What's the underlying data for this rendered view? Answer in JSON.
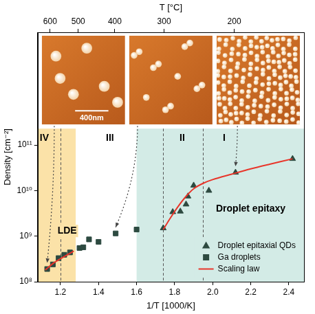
{
  "chart_data": {
    "type": "scatter",
    "log": "y",
    "grid": false,
    "legend": "lower right",
    "x_label": "1/T [1000/K]",
    "x2_label": "T [°C]",
    "y_label": "Density [cm⁻²]",
    "xlim": [
      1.08,
      2.48
    ],
    "xticks": [
      1.2,
      1.4,
      1.6,
      1.8,
      {
        "value": 2,
        "label": "2.0"
      },
      2.2,
      2.4
    ],
    "x2ticks": [
      600,
      500,
      400,
      300,
      200
    ],
    "ylim": [
      100000000,
      30000000000000
    ],
    "yticks": [
      {
        "value": 100000000,
        "label": "10⁸"
      },
      {
        "value": 1000000000,
        "label": "10⁹"
      },
      {
        "value": 10000000000,
        "label": "10¹⁰"
      },
      {
        "value": 100000000000,
        "label": "10¹¹"
      }
    ],
    "series": [
      {
        "name": "Droplet epitaxial QDs",
        "type": "scatter",
        "marker": "triangle",
        "color": "#2d4a40",
        "x": [
          1.74,
          1.79,
          1.83,
          1.86,
          1.87,
          1.9,
          1.98,
          2.12,
          2.42
        ],
        "values": [
          1500000000,
          3400000000,
          3500000000,
          5000000000,
          7500000000,
          13000000000,
          10000000000,
          25000000000,
          50000000000
        ]
      },
      {
        "name": "Ga droplets",
        "type": "scatter",
        "marker": "square",
        "color": "#2d4a40",
        "x": [
          1.13,
          1.16,
          1.19,
          1.22,
          1.25,
          1.3,
          1.32,
          1.35,
          1.4,
          1.49,
          1.6
        ],
        "values": [
          190000000,
          240000000,
          330000000,
          390000000,
          440000000,
          550000000,
          570000000,
          850000000,
          750000000,
          1150000000,
          1400000000
        ]
      },
      {
        "name": "Scaling law",
        "type": "line",
        "line_style": "solid",
        "color": "#e8352a",
        "x": [
          1.12,
          1.16,
          1.2,
          1.24,
          1.27,
          null,
          1.74,
          1.78,
          1.82,
          1.86,
          1.9,
          1.95,
          2.0,
          2.1,
          2.2,
          2.3,
          2.42
        ],
        "values": [
          180000000,
          250000000,
          320000000,
          400000000,
          470000000,
          null,
          1400000000,
          2600000000,
          4600000000,
          7500000000,
          11000000000,
          14500000000,
          17500000000,
          23000000000,
          30000000000,
          38000000000,
          50000000000
        ]
      }
    ],
    "shaded_regions": [
      {
        "x": [
          1.08,
          1.28
        ],
        "color": "#fbe2a8"
      },
      {
        "x": [
          1.6,
          2.48
        ],
        "color": "#d3ebe6"
      }
    ],
    "shade_top": 230000000000,
    "dashed_lines_x": [
      1.2,
      1.74,
      1.95
    ],
    "annotations": [
      {
        "text": "IV",
        "x": 1.115,
        "y": 140000000000
      },
      {
        "text": "III",
        "x": 1.46,
        "y": 140000000000
      },
      {
        "text": "II",
        "x": 1.84,
        "y": 140000000000
      },
      {
        "text": "I",
        "x": 2.06,
        "y": 140000000000
      },
      {
        "text": "LDE",
        "x": 1.235,
        "y": 1300000000
      },
      {
        "text": "Droplet epitaxy",
        "x": 2.2,
        "y": 4000000000
      }
    ],
    "insets": [
      {
        "scale_bar": "400nm",
        "target": {
          "x": 1.13,
          "y": 190000000
        }
      },
      {
        "target": {
          "x": 1.49,
          "y": 1150000000
        }
      },
      {
        "target": {
          "x": 2.12,
          "y": 25000000000
        }
      }
    ]
  }
}
